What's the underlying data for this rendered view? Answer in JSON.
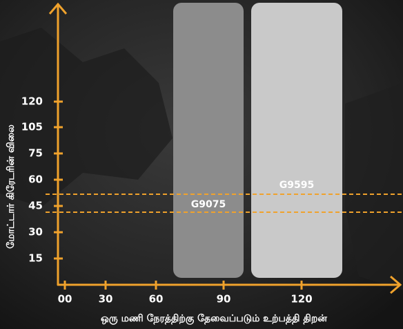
{
  "y_axis": {
    "title": "மோட்டார் கிரேடரின் விலை",
    "ticks": [
      "15",
      "30",
      "45",
      "60",
      "75",
      "105",
      "120"
    ]
  },
  "x_axis": {
    "title": "ஒரு மணி நேரத்திற்கு தேவைப்படும் உற்பத்தி திறன்",
    "ticks": [
      "00",
      "30",
      "60",
      "90",
      "120"
    ]
  },
  "bars": [
    {
      "label": "G9075"
    },
    {
      "label": "G9595"
    }
  ]
}
